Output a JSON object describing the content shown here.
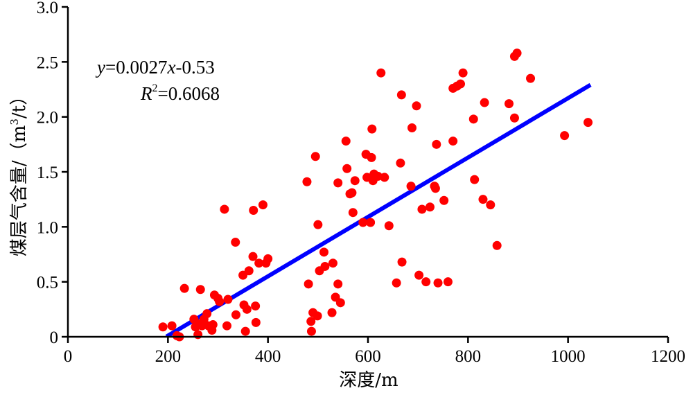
{
  "chart_data": {
    "type": "scatter",
    "xlabel": "深度/m",
    "ylabel_main": "煤层气含量/（m",
    "ylabel_sup": "3",
    "ylabel_end": "/t）",
    "xlim": [
      0,
      1200
    ],
    "ylim": [
      0,
      3.0
    ],
    "x_ticks": [
      0,
      200,
      400,
      600,
      800,
      1000,
      1200
    ],
    "x_tick_labels": [
      "0",
      "200",
      "400",
      "600",
      "800",
      "1000",
      "1200"
    ],
    "y_ticks": [
      0,
      0.5,
      1.0,
      1.5,
      2.0,
      2.5,
      3.0
    ],
    "y_tick_labels": [
      "0",
      "0.5",
      "1.0",
      "1.5",
      "2.0",
      "2.5",
      "3.0"
    ],
    "grid": false,
    "point_color": "#ff0000",
    "line_color": "#0000ff",
    "equation": {
      "y_var": "y",
      "eq_mid": "=0.0027",
      "x_var": "x",
      "eq_end": "-0.53",
      "r_var": "R",
      "r_sup": "2",
      "r_value": "=0.6068"
    },
    "fit_line": {
      "slope": 0.0027,
      "intercept": -0.53,
      "x_start": 197,
      "x_end": 1045
    },
    "points": [
      [
        190,
        0.09
      ],
      [
        208,
        0.1
      ],
      [
        218,
        0.01
      ],
      [
        223,
        0.0
      ],
      [
        233,
        0.44
      ],
      [
        252,
        0.16
      ],
      [
        255,
        0.09
      ],
      [
        258,
        0.12
      ],
      [
        260,
        0.02
      ],
      [
        265,
        0.43
      ],
      [
        268,
        0.1
      ],
      [
        272,
        0.16
      ],
      [
        278,
        0.21
      ],
      [
        281,
        0.1
      ],
      [
        288,
        0.06
      ],
      [
        290,
        0.11
      ],
      [
        293,
        0.38
      ],
      [
        300,
        0.35
      ],
      [
        303,
        0.32
      ],
      [
        313,
        1.16
      ],
      [
        318,
        0.1
      ],
      [
        320,
        0.34
      ],
      [
        335,
        0.86
      ],
      [
        336,
        0.2
      ],
      [
        350,
        0.56
      ],
      [
        352,
        0.29
      ],
      [
        355,
        0.05
      ],
      [
        358,
        0.25
      ],
      [
        362,
        0.6
      ],
      [
        370,
        0.73
      ],
      [
        371,
        1.15
      ],
      [
        375,
        0.28
      ],
      [
        376,
        0.13
      ],
      [
        382,
        0.67
      ],
      [
        390,
        1.2
      ],
      [
        396,
        0.67
      ],
      [
        400,
        0.71
      ],
      [
        478,
        1.41
      ],
      [
        481,
        0.48
      ],
      [
        486,
        0.14
      ],
      [
        487,
        0.05
      ],
      [
        490,
        0.22
      ],
      [
        495,
        1.64
      ],
      [
        499,
        0.19
      ],
      [
        500,
        1.02
      ],
      [
        503,
        0.6
      ],
      [
        512,
        0.77
      ],
      [
        514,
        0.64
      ],
      [
        530,
        0.67
      ],
      [
        528,
        0.22
      ],
      [
        535,
        0.36
      ],
      [
        540,
        1.4
      ],
      [
        540,
        0.48
      ],
      [
        545,
        0.31
      ],
      [
        556,
        1.78
      ],
      [
        558,
        1.53
      ],
      [
        564,
        1.3
      ],
      [
        568,
        1.31
      ],
      [
        570,
        1.13
      ],
      [
        574,
        1.42
      ],
      [
        590,
        1.04
      ],
      [
        596,
        1.66
      ],
      [
        598,
        1.45
      ],
      [
        605,
        1.04
      ],
      [
        608,
        1.89
      ],
      [
        607,
        1.63
      ],
      [
        610,
        1.42
      ],
      [
        612,
        1.48
      ],
      [
        620,
        1.46
      ],
      [
        626,
        2.4
      ],
      [
        633,
        1.45
      ],
      [
        642,
        1.01
      ],
      [
        657,
        0.49
      ],
      [
        665,
        1.58
      ],
      [
        667,
        2.2
      ],
      [
        668,
        0.68
      ],
      [
        686,
        1.37
      ],
      [
        688,
        1.9
      ],
      [
        697,
        2.1
      ],
      [
        702,
        0.56
      ],
      [
        708,
        1.16
      ],
      [
        716,
        0.5
      ],
      [
        724,
        1.18
      ],
      [
        733,
        1.37
      ],
      [
        735,
        1.35
      ],
      [
        737,
        1.75
      ],
      [
        740,
        0.49
      ],
      [
        752,
        1.24
      ],
      [
        760,
        0.5
      ],
      [
        770,
        1.78
      ],
      [
        770,
        2.26
      ],
      [
        778,
        2.28
      ],
      [
        785,
        2.3
      ],
      [
        790,
        2.4
      ],
      [
        811,
        1.98
      ],
      [
        813,
        1.43
      ],
      [
        830,
        1.25
      ],
      [
        833,
        2.13
      ],
      [
        845,
        1.2
      ],
      [
        858,
        0.83
      ],
      [
        882,
        2.12
      ],
      [
        893,
        1.99
      ],
      [
        893,
        2.55
      ],
      [
        898,
        2.58
      ],
      [
        925,
        2.35
      ],
      [
        993,
        1.83
      ],
      [
        1040,
        1.95
      ]
    ]
  }
}
